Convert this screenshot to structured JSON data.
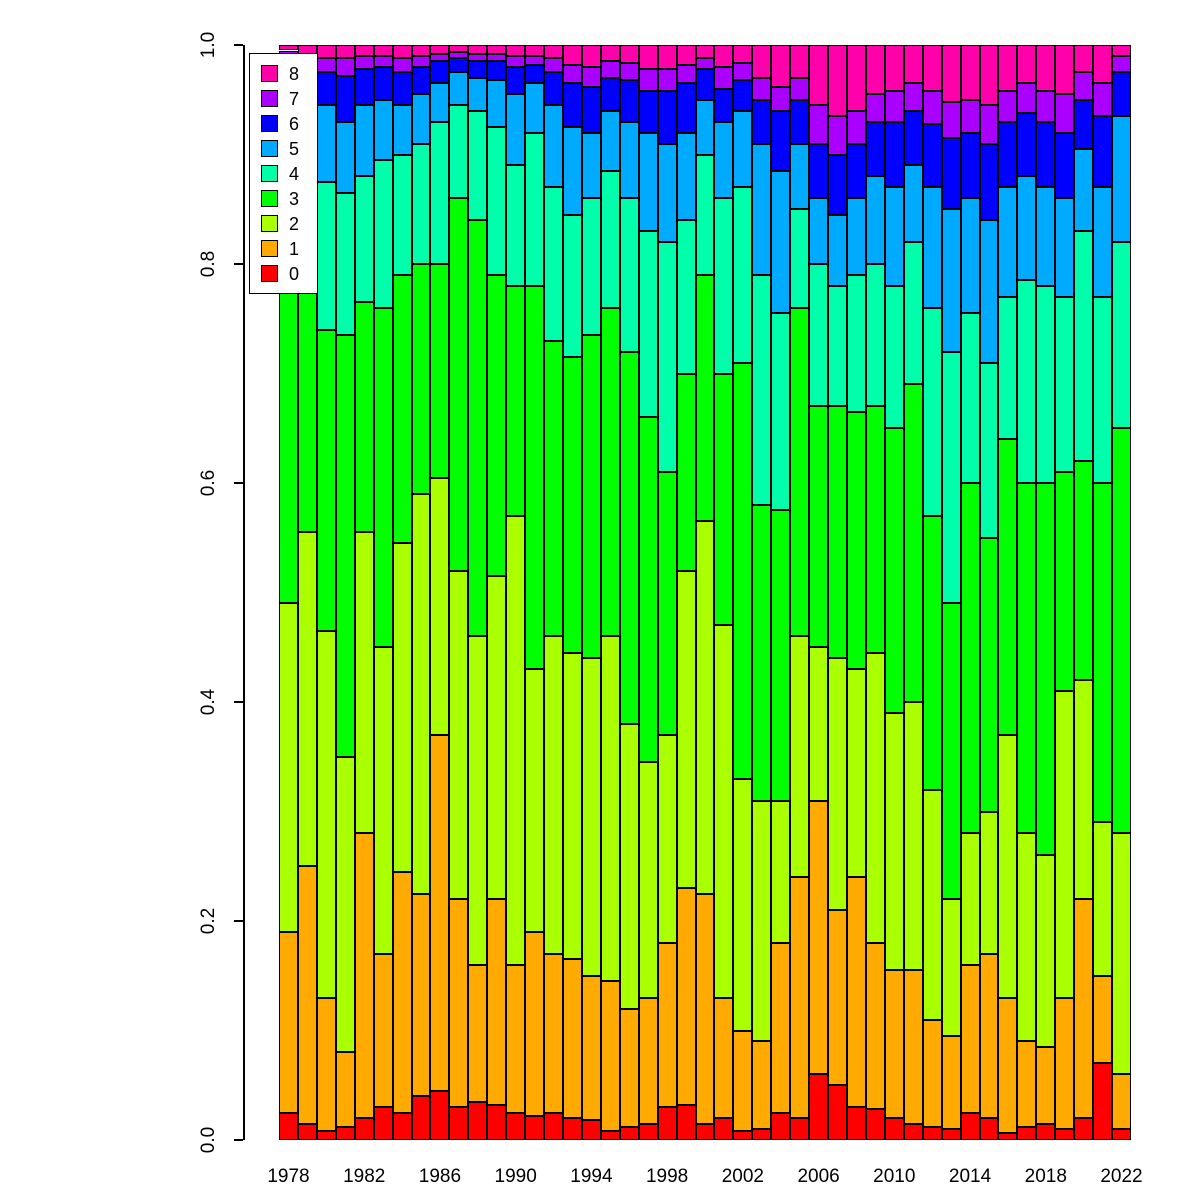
{
  "figure": {
    "background": "#ffffff",
    "bar_border_color": "#000000"
  },
  "chart_data": {
    "type": "bar",
    "subtype": "stacked-normalized",
    "title": "",
    "xlabel": "",
    "ylabel": "",
    "ylim": [
      0,
      1
    ],
    "grid": false,
    "legend": {
      "position": "top-left",
      "entries": [
        {
          "label": "8",
          "color": "#FF00AA"
        },
        {
          "label": "7",
          "color": "#AA00FF"
        },
        {
          "label": "6",
          "color": "#0000FF"
        },
        {
          "label": "5",
          "color": "#00AAFF"
        },
        {
          "label": "4",
          "color": "#00FFAA"
        },
        {
          "label": "3",
          "color": "#00FF00"
        },
        {
          "label": "2",
          "color": "#AAFF00"
        },
        {
          "label": "1",
          "color": "#FFAA00"
        },
        {
          "label": "0",
          "color": "#FF0000"
        }
      ]
    },
    "y_axis_ticks": [
      0,
      0.2,
      0.4,
      0.6,
      0.8,
      1.0
    ],
    "y_tick_labels": [
      "0.0",
      "0.2",
      "0.4",
      "0.6",
      "0.8",
      "1.0"
    ],
    "x_axis_ticks": [
      1978,
      1982,
      1986,
      1990,
      1994,
      1998,
      2002,
      2006,
      2010,
      2014,
      2018,
      2022
    ],
    "categories": [
      1978,
      1979,
      1980,
      1981,
      1982,
      1983,
      1984,
      1985,
      1986,
      1987,
      1988,
      1989,
      1990,
      1991,
      1992,
      1993,
      1994,
      1995,
      1996,
      1997,
      1998,
      1999,
      2000,
      2001,
      2002,
      2003,
      2004,
      2005,
      2006,
      2007,
      2008,
      2009,
      2010,
      2011,
      2012,
      2013,
      2014,
      2015,
      2016,
      2017,
      2018,
      2019,
      2020,
      2021,
      2022
    ],
    "series": [
      {
        "name": "0",
        "color": "#FF0000",
        "values": [
          0.025,
          0.015,
          0.008,
          0.012,
          0.02,
          0.03,
          0.025,
          0.04,
          0.045,
          0.03,
          0.035,
          0.032,
          0.025,
          0.022,
          0.025,
          0.02,
          0.018,
          0.008,
          0.012,
          0.015,
          0.03,
          0.032,
          0.015,
          0.02,
          0.008,
          0.01,
          0.025,
          0.02,
          0.06,
          0.05,
          0.03,
          0.028,
          0.02,
          0.015,
          0.012,
          0.01,
          0.025,
          0.02,
          0.006,
          0.012,
          0.015,
          0.01,
          0.02,
          0.07,
          0.01
        ]
      },
      {
        "name": "1",
        "color": "#FFAA00",
        "values": [
          0.165,
          0.235,
          0.122,
          0.068,
          0.26,
          0.14,
          0.22,
          0.185,
          0.325,
          0.19,
          0.125,
          0.188,
          0.135,
          0.168,
          0.145,
          0.145,
          0.132,
          0.137,
          0.108,
          0.115,
          0.15,
          0.198,
          0.21,
          0.11,
          0.092,
          0.08,
          0.155,
          0.22,
          0.25,
          0.16,
          0.21,
          0.152,
          0.135,
          0.14,
          0.098,
          0.085,
          0.135,
          0.15,
          0.124,
          0.078,
          0.07,
          0.12,
          0.2,
          0.08,
          0.05
        ]
      },
      {
        "name": "2",
        "color": "#AAFF00",
        "values": [
          0.3,
          0.305,
          0.335,
          0.27,
          0.275,
          0.28,
          0.3,
          0.365,
          0.235,
          0.3,
          0.3,
          0.295,
          0.41,
          0.24,
          0.29,
          0.28,
          0.29,
          0.315,
          0.26,
          0.215,
          0.19,
          0.29,
          0.34,
          0.34,
          0.23,
          0.22,
          0.13,
          0.22,
          0.14,
          0.23,
          0.19,
          0.265,
          0.235,
          0.245,
          0.21,
          0.125,
          0.12,
          0.13,
          0.24,
          0.19,
          0.175,
          0.28,
          0.2,
          0.14,
          0.22
        ]
      },
      {
        "name": "3",
        "color": "#00FF00",
        "values": [
          0.29,
          0.22,
          0.275,
          0.385,
          0.21,
          0.31,
          0.245,
          0.21,
          0.195,
          0.34,
          0.38,
          0.275,
          0.21,
          0.35,
          0.27,
          0.27,
          0.295,
          0.3,
          0.34,
          0.315,
          0.24,
          0.18,
          0.225,
          0.23,
          0.38,
          0.27,
          0.265,
          0.3,
          0.22,
          0.23,
          0.235,
          0.225,
          0.26,
          0.29,
          0.25,
          0.27,
          0.32,
          0.25,
          0.27,
          0.32,
          0.34,
          0.2,
          0.2,
          0.31,
          0.37
        ]
      },
      {
        "name": "4",
        "color": "#00FFAA",
        "values": [
          0.15,
          0.125,
          0.135,
          0.13,
          0.115,
          0.135,
          0.11,
          0.11,
          0.13,
          0.085,
          0.1,
          0.135,
          0.11,
          0.14,
          0.14,
          0.13,
          0.125,
          0.125,
          0.14,
          0.17,
          0.21,
          0.14,
          0.11,
          0.16,
          0.16,
          0.21,
          0.18,
          0.09,
          0.13,
          0.11,
          0.125,
          0.13,
          0.13,
          0.13,
          0.19,
          0.23,
          0.155,
          0.16,
          0.13,
          0.185,
          0.18,
          0.16,
          0.21,
          0.17,
          0.17
        ]
      },
      {
        "name": "5",
        "color": "#00AAFF",
        "values": [
          0.04,
          0.055,
          0.07,
          0.065,
          0.065,
          0.055,
          0.045,
          0.045,
          0.035,
          0.03,
          0.03,
          0.043,
          0.065,
          0.045,
          0.075,
          0.08,
          0.06,
          0.055,
          0.07,
          0.09,
          0.09,
          0.08,
          0.05,
          0.07,
          0.07,
          0.12,
          0.13,
          0.06,
          0.06,
          0.065,
          0.07,
          0.08,
          0.09,
          0.07,
          0.11,
          0.13,
          0.105,
          0.13,
          0.1,
          0.095,
          0.09,
          0.09,
          0.075,
          0.1,
          0.115
        ]
      },
      {
        "name": "6",
        "color": "#0000FF",
        "values": [
          0.015,
          0.025,
          0.03,
          0.042,
          0.033,
          0.03,
          0.03,
          0.025,
          0.02,
          0.013,
          0.015,
          0.017,
          0.025,
          0.017,
          0.03,
          0.04,
          0.042,
          0.03,
          0.038,
          0.038,
          0.048,
          0.045,
          0.028,
          0.03,
          0.028,
          0.04,
          0.055,
          0.04,
          0.05,
          0.055,
          0.05,
          0.05,
          0.06,
          0.05,
          0.058,
          0.065,
          0.06,
          0.07,
          0.06,
          0.058,
          0.06,
          0.06,
          0.045,
          0.065,
          0.04
        ]
      },
      {
        "name": "7",
        "color": "#AA00FF",
        "values": [
          0.01,
          0.01,
          0.013,
          0.016,
          0.012,
          0.01,
          0.013,
          0.01,
          0.007,
          0.006,
          0.007,
          0.007,
          0.01,
          0.008,
          0.013,
          0.017,
          0.018,
          0.015,
          0.016,
          0.02,
          0.02,
          0.017,
          0.01,
          0.02,
          0.016,
          0.02,
          0.022,
          0.02,
          0.035,
          0.035,
          0.03,
          0.025,
          0.028,
          0.025,
          0.03,
          0.033,
          0.03,
          0.035,
          0.028,
          0.027,
          0.028,
          0.035,
          0.025,
          0.03,
          0.015
        ]
      },
      {
        "name": "8",
        "color": "#FF00AA",
        "values": [
          0.005,
          0.01,
          0.012,
          0.012,
          0.01,
          0.01,
          0.012,
          0.01,
          0.008,
          0.006,
          0.008,
          0.008,
          0.01,
          0.01,
          0.012,
          0.018,
          0.02,
          0.015,
          0.016,
          0.022,
          0.022,
          0.018,
          0.012,
          0.02,
          0.016,
          0.03,
          0.038,
          0.03,
          0.055,
          0.065,
          0.06,
          0.045,
          0.042,
          0.035,
          0.042,
          0.052,
          0.05,
          0.055,
          0.042,
          0.035,
          0.042,
          0.045,
          0.025,
          0.035,
          0.01
        ]
      }
    ]
  }
}
